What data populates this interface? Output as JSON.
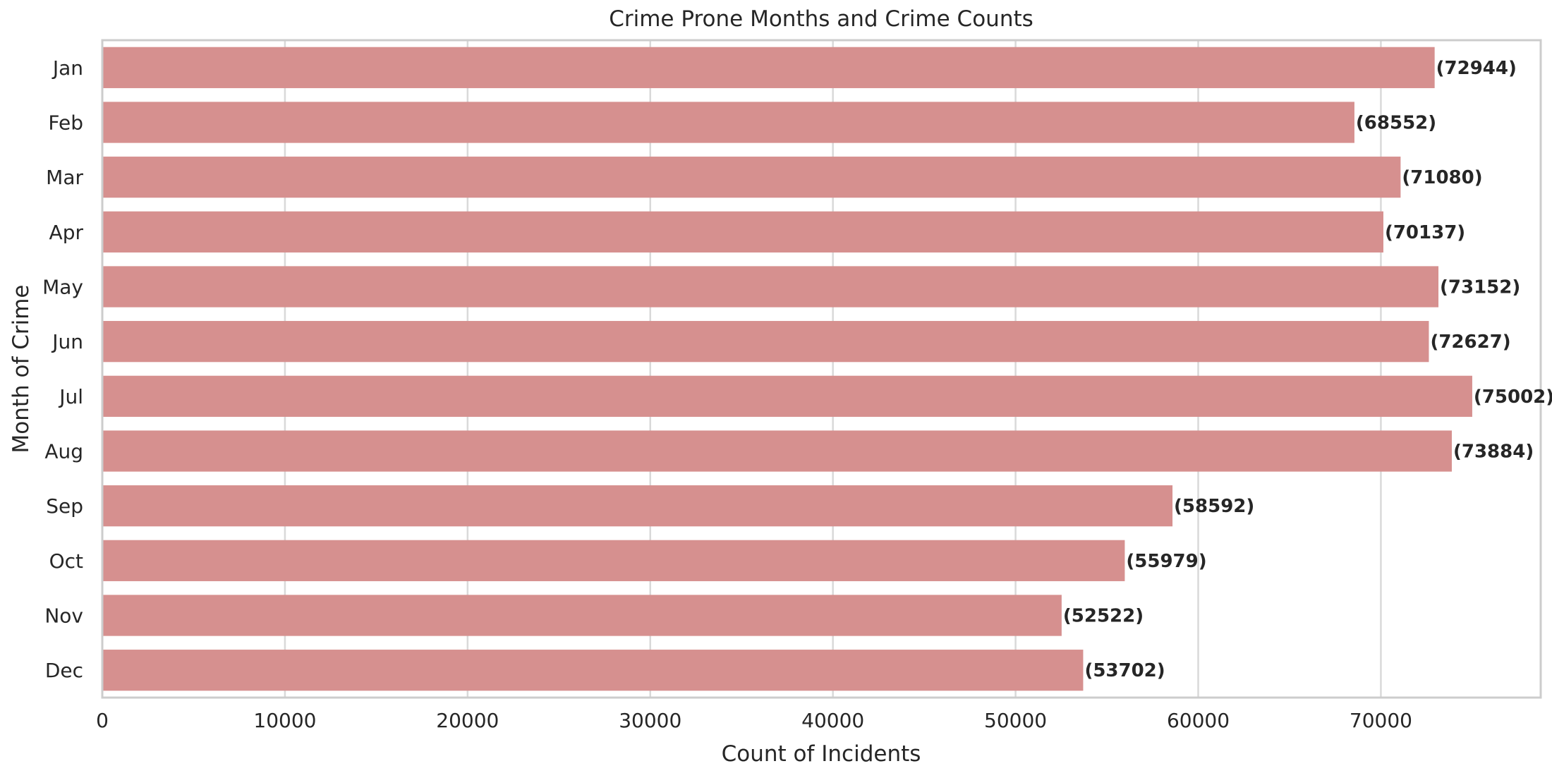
{
  "chart_data": {
    "type": "bar",
    "orientation": "horizontal",
    "title": "Crime Prone Months and Crime Counts",
    "xlabel": "Count of Incidents",
    "ylabel": "Month of Crime",
    "categories": [
      "Jan",
      "Feb",
      "Mar",
      "Apr",
      "May",
      "Jun",
      "Jul",
      "Aug",
      "Sep",
      "Oct",
      "Nov",
      "Dec"
    ],
    "values": [
      72944,
      68552,
      71080,
      70137,
      73152,
      72627,
      75002,
      73884,
      58592,
      55979,
      52522,
      53702
    ],
    "data_labels": [
      "(72944)",
      "(68552)",
      "(71080)",
      "(70137)",
      "(73152)",
      "(72627)",
      "(75002)",
      "(73884)",
      "(58592)",
      "(55979)",
      "(52522)",
      "(53702)"
    ],
    "xlim": [
      0,
      78751
    ],
    "xticks": [
      0,
      10000,
      20000,
      30000,
      40000,
      50000,
      60000,
      70000
    ],
    "xtick_labels": [
      "0",
      "10000",
      "20000",
      "30000",
      "40000",
      "50000",
      "60000",
      "70000"
    ],
    "grid": true,
    "bar_color": "#d6908f"
  }
}
